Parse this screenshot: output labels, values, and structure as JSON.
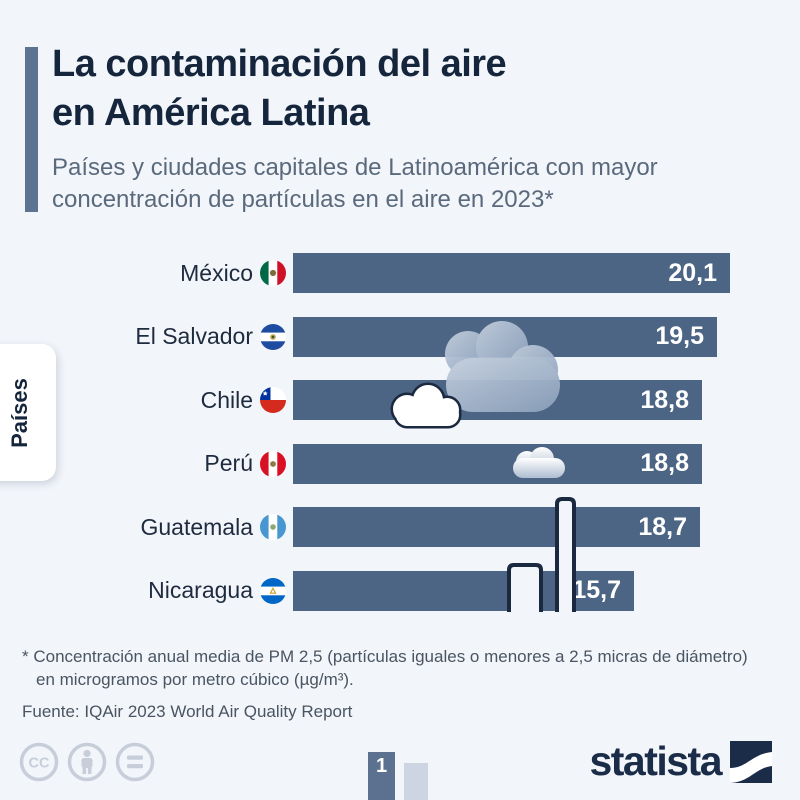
{
  "header": {
    "title_line1": "La contaminación del aire",
    "title_line2": "en América Latina",
    "subtitle": "Países y ciudades capitales de Latinoamérica con mayor concentración de partículas en el aire en 2023*"
  },
  "side_tab": {
    "label": "Países"
  },
  "chart_data": {
    "type": "bar",
    "orientation": "horizontal",
    "title": "La contaminación del aire en América Latina",
    "unit": "PM 2,5 en µg/m³",
    "categories": [
      "México",
      "El Salvador",
      "Chile",
      "Perú",
      "Guatemala",
      "Nicaragua"
    ],
    "values": [
      20.1,
      19.5,
      18.8,
      18.8,
      18.7,
      15.7
    ],
    "value_labels": [
      "20,1",
      "19,5",
      "18,8",
      "18,8",
      "18,7",
      "15,7"
    ],
    "flags": [
      "mx",
      "sv",
      "cl",
      "pe",
      "gt",
      "ni"
    ],
    "xlim": [
      0,
      20.1
    ],
    "grid": false,
    "value_label_position": "inside-end",
    "bar_color": "#4d6584"
  },
  "footnote": {
    "line1": "* Concentración anual media de PM 2,5 (partículas iguales o menores a 2,5 micras de diámetro)",
    "line2": "en microgramos por metro cúbico (µg/m³).",
    "source": "Fuente: IQAir 2023 World Air Quality Report"
  },
  "footer": {
    "brand": "statista",
    "page_number": "1",
    "license_icons": [
      "cc-icon",
      "attribution-icon",
      "equals-icon"
    ]
  },
  "colors": {
    "background": "#f2f5fa",
    "bar": "#4d6584",
    "title": "#15263c",
    "subtitle": "#5a6a7c",
    "accent_bar": "#5d7392",
    "value_text": "#ffffff",
    "pagination_active": "#5c7190",
    "pagination_inactive": "#ccd5e1",
    "logo_navy": "#1a2c47"
  }
}
